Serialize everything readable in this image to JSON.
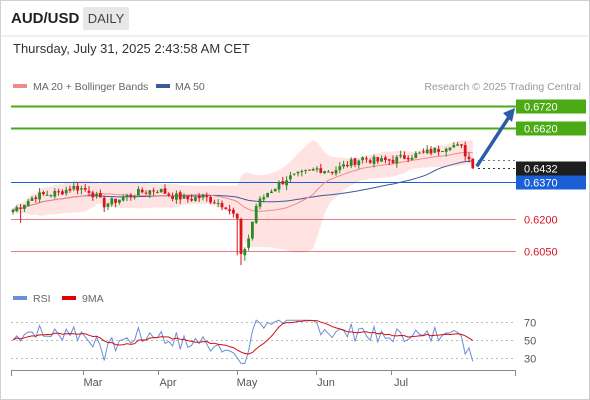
{
  "header": {
    "symbol": "AUD/USD",
    "timeframe": "DAILY",
    "datetime": "Thursday, July 31, 2025 2:43:58 AM CET"
  },
  "legend": {
    "ma20_label": "MA 20 + Bollinger Bands",
    "ma50_label": "MA 50",
    "credit": "Research © 2025 Trading Central",
    "ma20_color": "#f08a8a",
    "ma50_color": "#3a5a9a"
  },
  "rsi_legend": {
    "rsi_label": "RSI",
    "ma_label": "9MA",
    "rsi_color": "#6b8fd6",
    "ma_color": "#e00000"
  },
  "chart_data": {
    "type": "candlestick",
    "price_range": [
      0.5956,
      0.6756
    ],
    "levels": [
      {
        "name": "target2",
        "value": 0.672,
        "label": "0.6720",
        "color": "#4caa14",
        "style": "resistance"
      },
      {
        "name": "target1",
        "value": 0.662,
        "label": "0.6620",
        "color": "#4caa14",
        "style": "resistance"
      },
      {
        "name": "pivot",
        "value": 0.637,
        "label": "0.6370",
        "color": "#1b5fd6",
        "style": "pivot"
      },
      {
        "name": "support1",
        "value": 0.62,
        "label": "0.6200",
        "color": "#d9141f",
        "style": "support"
      },
      {
        "name": "support2",
        "value": 0.605,
        "label": "0.6050",
        "color": "#d9141f",
        "style": "support"
      }
    ],
    "last_price": {
      "value": 0.6432,
      "label": "0.6432"
    },
    "x_axis_labels": [
      "Mar",
      "Apr",
      "May",
      "Jun",
      "Jul"
    ],
    "rsi_levels": [
      "70",
      "50",
      "30"
    ],
    "colors": {
      "up": "#2c8a24",
      "down": "#d9141f",
      "bollinger": "#ffd9d9"
    }
  }
}
